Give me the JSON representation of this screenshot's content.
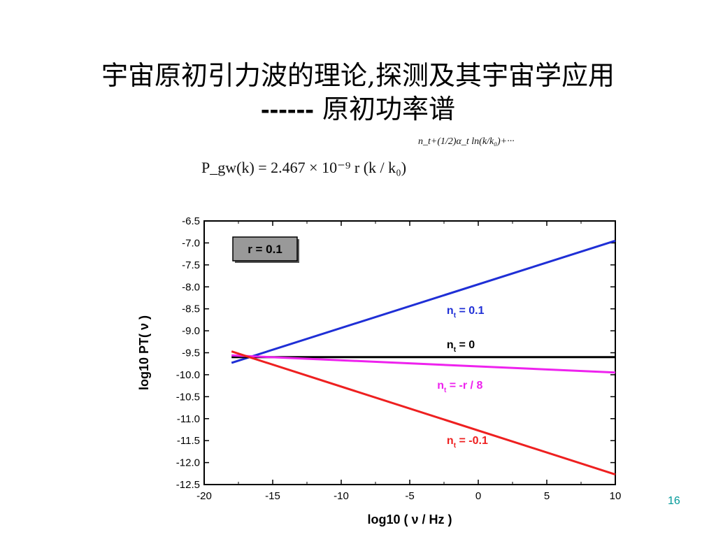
{
  "slide": {
    "title_line1": "宇宙原初引力波的理论,探测及其宇宙学应用",
    "title_dash": "------",
    "title_line2": "原初功率谱",
    "page_number": "16"
  },
  "formula": {
    "main": "P_gw(k) = 2.467 × 10⁻⁹ r (k / k₀)",
    "exponent": "n_t+(1/2)α_t ln(k/k₀)+···"
  },
  "chart_data": {
    "type": "line",
    "xlabel": "log10 ( ν / Hz )",
    "ylabel": "log10 PT( ν )",
    "xlim": [
      -20,
      10
    ],
    "ylim": [
      -12.5,
      -6.5
    ],
    "xticks": [
      -20,
      -15,
      -10,
      -5,
      0,
      5,
      10
    ],
    "yticks": [
      -6.5,
      -7.0,
      -7.5,
      -8.0,
      -8.5,
      -9.0,
      -9.5,
      -10.0,
      -10.5,
      -11.0,
      -11.5,
      -12.0,
      -12.5
    ],
    "grid": false,
    "inset_label": "r = 0.1",
    "series": [
      {
        "name": "n_t = 0.1",
        "color": "#1f2fd6",
        "x": [
          -18,
          10
        ],
        "y": [
          -9.73,
          -6.95
        ]
      },
      {
        "name": "n_t = 0",
        "color": "#000000",
        "x": [
          -18,
          10
        ],
        "y": [
          -9.6,
          -9.6
        ]
      },
      {
        "name": "n_t = -r / 8",
        "color": "#ee22ee",
        "x": [
          -18,
          10
        ],
        "y": [
          -9.56,
          -9.95
        ]
      },
      {
        "name": "n_t = -0.1",
        "color": "#ee2020",
        "x": [
          -18,
          10
        ],
        "y": [
          -9.47,
          -12.27
        ]
      }
    ],
    "series_labels": [
      {
        "base": "n",
        "sub": "t",
        "rest": " = 0.1",
        "x": -2.3,
        "y": -8.62,
        "color": "#1f2fd6"
      },
      {
        "base": "n",
        "sub": "t",
        "rest": " = 0",
        "x": -2.3,
        "y": -9.4,
        "color": "#000000"
      },
      {
        "base": "n",
        "sub": "t",
        "rest": " = -r / 8",
        "x": -3.0,
        "y": -10.32,
        "color": "#ee22ee"
      },
      {
        "base": "n",
        "sub": "t",
        "rest": " = -0.1",
        "x": -2.3,
        "y": -11.58,
        "color": "#ee2020"
      }
    ]
  }
}
